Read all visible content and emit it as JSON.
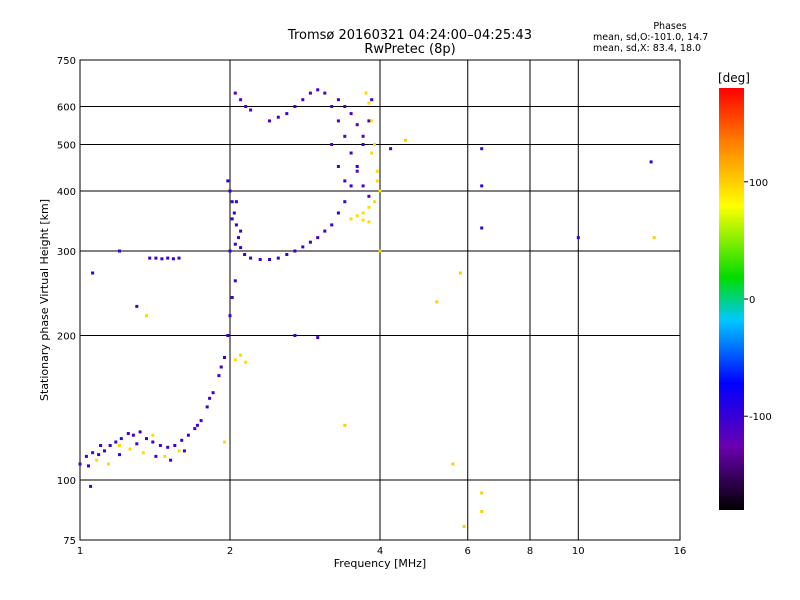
{
  "header": {
    "title_line1": "Tromsø 20160321 04:24:00–04:25:43",
    "title_line2": "RwPretec (8p)",
    "stats_title": "Phases",
    "stats_o": "mean, sd,O:-101.0, 14.7",
    "stats_x": "mean, sd,X:  83.4, 18.0"
  },
  "colorbar": {
    "label": "[deg]",
    "ticks": [
      {
        "value": 100,
        "label": "100"
      },
      {
        "value": 0,
        "label": "0"
      },
      {
        "value": -100,
        "label": "-100"
      }
    ],
    "range": [
      -180,
      180
    ]
  },
  "chart_data": {
    "type": "scatter",
    "xlabel": "Frequency [MHz]",
    "ylabel": "Stationary phase Virtual Height [km]",
    "xscale": "log",
    "yscale": "log",
    "xlim": [
      1,
      16
    ],
    "ylim": [
      75,
      750
    ],
    "grid": true,
    "x_ticks": [
      {
        "value": 1,
        "label": "1"
      },
      {
        "value": 2,
        "label": "2"
      },
      {
        "value": 4,
        "label": "4"
      },
      {
        "value": 6,
        "label": "6"
      },
      {
        "value": 8,
        "label": "8"
      },
      {
        "value": 10,
        "label": "10"
      },
      {
        "value": 16,
        "label": "16"
      }
    ],
    "y_ticks": [
      {
        "value": 75,
        "label": "75"
      },
      {
        "value": 100,
        "label": "100"
      },
      {
        "value": 200,
        "label": "200"
      },
      {
        "value": 300,
        "label": "300"
      },
      {
        "value": 400,
        "label": "400"
      },
      {
        "value": 500,
        "label": "500"
      },
      {
        "value": 600,
        "label": "600"
      },
      {
        "value": 750,
        "label": "750"
      }
    ],
    "clusters": [
      {
        "name": "E-region O echoes",
        "phase": -105,
        "points": [
          [
            1.0,
            108
          ],
          [
            1.03,
            112
          ],
          [
            1.06,
            114
          ],
          [
            1.09,
            113
          ],
          [
            1.12,
            115
          ],
          [
            1.15,
            118
          ],
          [
            1.18,
            120
          ],
          [
            1.21,
            122
          ],
          [
            1.25,
            125
          ],
          [
            1.28,
            124
          ],
          [
            1.32,
            126
          ],
          [
            1.36,
            122
          ],
          [
            1.4,
            120
          ],
          [
            1.45,
            118
          ],
          [
            1.5,
            117
          ],
          [
            1.55,
            118
          ],
          [
            1.6,
            121
          ],
          [
            1.65,
            124
          ],
          [
            1.7,
            128
          ],
          [
            1.75,
            133
          ],
          [
            1.8,
            142
          ],
          [
            1.85,
            152
          ],
          [
            1.9,
            165
          ],
          [
            1.95,
            180
          ],
          [
            1.98,
            200
          ],
          [
            2.0,
            220
          ],
          [
            2.02,
            240
          ],
          [
            2.05,
            260
          ],
          [
            1.04,
            107
          ],
          [
            1.1,
            118
          ],
          [
            1.2,
            113
          ],
          [
            1.3,
            119
          ],
          [
            1.42,
            112
          ],
          [
            1.52,
            110
          ],
          [
            1.62,
            115
          ],
          [
            1.72,
            130
          ],
          [
            1.82,
            148
          ],
          [
            1.92,
            172
          ]
        ]
      },
      {
        "name": "E-region X echoes",
        "phase": 95,
        "points": [
          [
            1.08,
            110
          ],
          [
            1.14,
            108
          ],
          [
            1.2,
            118
          ],
          [
            1.26,
            116
          ],
          [
            1.34,
            114
          ],
          [
            1.4,
            124
          ],
          [
            1.48,
            112
          ],
          [
            1.58,
            115
          ],
          [
            2.05,
            178
          ],
          [
            2.1,
            182
          ],
          [
            2.15,
            176
          ],
          [
            1.36,
            220
          ],
          [
            1.95,
            120
          ]
        ]
      },
      {
        "name": "Es trace",
        "phase": -100,
        "points": [
          [
            1.38,
            290
          ],
          [
            1.42,
            290
          ],
          [
            1.46,
            289
          ],
          [
            1.5,
            290
          ],
          [
            1.54,
            289
          ],
          [
            1.58,
            290
          ]
        ]
      },
      {
        "name": "F-region O trace",
        "phase": -100,
        "points": [
          [
            1.98,
            420
          ],
          [
            2.0,
            400
          ],
          [
            2.02,
            380
          ],
          [
            2.04,
            360
          ],
          [
            2.06,
            340
          ],
          [
            2.08,
            320
          ],
          [
            2.1,
            305
          ],
          [
            2.14,
            295
          ],
          [
            2.2,
            290
          ],
          [
            2.3,
            288
          ],
          [
            2.4,
            288
          ],
          [
            2.5,
            290
          ],
          [
            2.6,
            295
          ],
          [
            2.7,
            300
          ],
          [
            2.8,
            306
          ],
          [
            2.9,
            313
          ],
          [
            3.0,
            320
          ],
          [
            3.1,
            330
          ],
          [
            3.2,
            340
          ],
          [
            3.3,
            360
          ],
          [
            3.4,
            380
          ],
          [
            3.5,
            410
          ],
          [
            3.6,
            450
          ],
          [
            3.7,
            500
          ],
          [
            3.8,
            560
          ],
          [
            3.85,
            620
          ],
          [
            2.0,
            300
          ],
          [
            2.05,
            310
          ],
          [
            2.02,
            350
          ],
          [
            2.06,
            380
          ],
          [
            2.1,
            330
          ]
        ]
      },
      {
        "name": "F-region upper O",
        "phase": -110,
        "points": [
          [
            2.05,
            640
          ],
          [
            2.1,
            620
          ],
          [
            2.15,
            600
          ],
          [
            2.2,
            590
          ],
          [
            2.4,
            560
          ],
          [
            2.5,
            570
          ],
          [
            2.6,
            580
          ],
          [
            2.7,
            600
          ],
          [
            2.8,
            620
          ],
          [
            2.9,
            640
          ],
          [
            3.0,
            650
          ],
          [
            3.1,
            640
          ],
          [
            3.2,
            600
          ],
          [
            3.3,
            560
          ],
          [
            3.4,
            520
          ],
          [
            3.5,
            480
          ],
          [
            3.6,
            440
          ],
          [
            3.7,
            410
          ],
          [
            3.8,
            390
          ],
          [
            3.3,
            620
          ],
          [
            3.4,
            600
          ],
          [
            3.5,
            580
          ],
          [
            3.6,
            550
          ],
          [
            3.7,
            520
          ],
          [
            3.2,
            500
          ],
          [
            3.3,
            450
          ],
          [
            3.4,
            420
          ]
        ]
      },
      {
        "name": "F-region X trace",
        "phase": 95,
        "points": [
          [
            3.5,
            350
          ],
          [
            3.6,
            355
          ],
          [
            3.7,
            360
          ],
          [
            3.8,
            370
          ],
          [
            3.9,
            380
          ],
          [
            4.0,
            400
          ],
          [
            3.95,
            440
          ],
          [
            3.9,
            500
          ],
          [
            3.85,
            560
          ],
          [
            3.8,
            610
          ],
          [
            3.75,
            640
          ],
          [
            3.85,
            480
          ],
          [
            3.95,
            420
          ],
          [
            3.7,
            348
          ],
          [
            3.8,
            345
          ]
        ]
      },
      {
        "name": "Scattered echoes",
        "phase": -100,
        "points": [
          [
            6.4,
            490
          ],
          [
            6.4,
            410
          ],
          [
            6.4,
            335
          ],
          [
            10.0,
            320
          ],
          [
            14.0,
            460
          ],
          [
            4.2,
            490
          ],
          [
            1.06,
            270
          ],
          [
            2.7,
            200
          ],
          [
            3.0,
            198
          ],
          [
            1.3,
            230
          ],
          [
            1.05,
            97
          ],
          [
            1.2,
            300
          ]
        ]
      },
      {
        "name": "Scattered X echoes",
        "phase": 100,
        "points": [
          [
            4.5,
            510
          ],
          [
            5.8,
            270
          ],
          [
            5.2,
            235
          ],
          [
            14.2,
            320
          ],
          [
            5.9,
            80
          ],
          [
            6.4,
            94
          ],
          [
            6.4,
            86
          ],
          [
            3.4,
            130
          ],
          [
            4.0,
            300
          ],
          [
            5.6,
            108
          ]
        ]
      }
    ]
  }
}
